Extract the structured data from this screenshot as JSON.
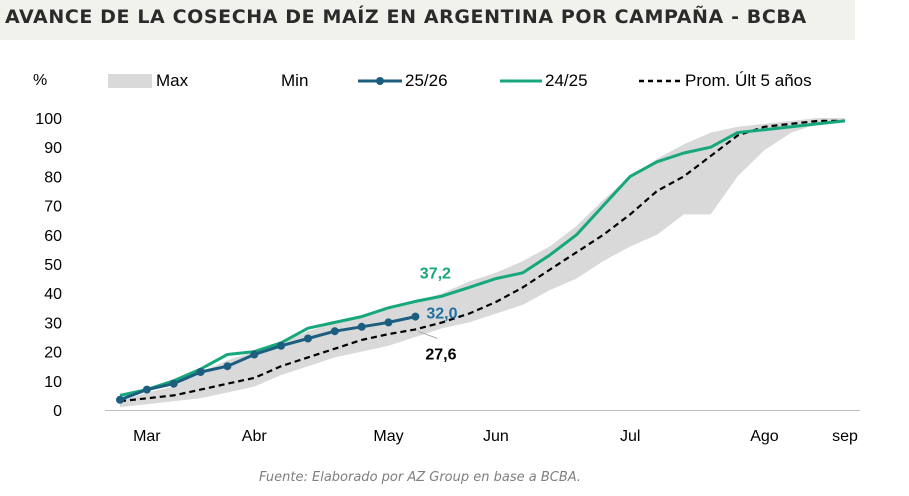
{
  "title": "AVANCE DE LA COSECHA DE MAÍZ EN ARGENTINA POR CAMPAÑA - BCBA",
  "source": "Fuente: Elaborado por AZ Group en base a BCBA.",
  "colors": {
    "band": "#d9d9d9",
    "s2526": "#1d5e80",
    "s2425": "#16a77c",
    "avg": "#000000",
    "label2526": "#1f6fa0",
    "label2425": "#16a77c"
  },
  "chart_data": {
    "type": "line",
    "title": "AVANCE DE LA COSECHA DE MAÍZ EN ARGENTINA POR CAMPAÑA - BCBA",
    "ylabel": "%",
    "xlabel": "",
    "ylim": [
      0,
      100
    ],
    "yticks": [
      0,
      10,
      20,
      30,
      40,
      50,
      60,
      70,
      80,
      90,
      100
    ],
    "xticks": [
      "Mar",
      "Abr",
      "May",
      "Jun",
      "Jul",
      "Ago",
      "sep"
    ],
    "x_unit": "week",
    "x_domain": [
      0,
      27
    ],
    "xtick_positions": [
      1,
      5,
      10,
      14,
      19,
      24,
      27
    ],
    "legend_position": "top",
    "band": {
      "name_max": "Max",
      "name_min": "Min",
      "x": [
        0,
        1,
        2,
        3,
        4,
        5,
        6,
        7,
        8,
        9,
        10,
        11,
        12,
        13,
        14,
        15,
        16,
        17,
        18,
        19,
        20,
        21,
        22,
        23,
        24,
        25,
        26,
        27
      ],
      "max": [
        3,
        6,
        8,
        13,
        17,
        20,
        23,
        27,
        30,
        32,
        35,
        37,
        40,
        44,
        47,
        51,
        56,
        63,
        72,
        80,
        86,
        91,
        95,
        97,
        98,
        99,
        100,
        100
      ],
      "min": [
        1,
        2,
        3,
        4,
        6,
        8,
        12,
        15,
        18,
        20,
        22,
        25,
        28,
        30,
        33,
        36,
        41,
        45,
        51,
        56,
        60,
        67,
        67,
        80,
        89,
        95,
        98,
        99
      ]
    },
    "series": [
      {
        "name": "25/26",
        "x": [
          0,
          1,
          2,
          3,
          4,
          5,
          6,
          7,
          8,
          9,
          10,
          11
        ],
        "y": [
          3.5,
          7,
          9,
          13,
          15,
          19,
          22,
          24.5,
          27,
          28.5,
          30,
          32.0
        ],
        "markers": true,
        "end_label": "32,0"
      },
      {
        "name": "24/25",
        "x": [
          0,
          1,
          2,
          3,
          4,
          5,
          6,
          7,
          8,
          9,
          10,
          11,
          12,
          13,
          14,
          15,
          16,
          17,
          18,
          19,
          20,
          21,
          22,
          23,
          24,
          25,
          26,
          27
        ],
        "y": [
          5,
          7,
          10,
          14,
          19,
          20,
          23,
          28,
          30,
          32,
          35,
          37.2,
          39,
          42,
          45,
          47,
          53,
          60,
          70,
          80,
          85,
          88,
          90,
          95,
          96,
          97,
          98,
          99
        ],
        "markers": false,
        "label": "37,2",
        "label_x": 11
      },
      {
        "name": "Prom. Últ 5 años",
        "x": [
          0,
          1,
          2,
          3,
          4,
          5,
          6,
          7,
          8,
          9,
          10,
          11,
          12,
          13,
          14,
          15,
          16,
          17,
          18,
          19,
          20,
          21,
          22,
          23,
          24,
          25,
          26,
          27
        ],
        "y": [
          3,
          4,
          5,
          7,
          9,
          11,
          15,
          18,
          21,
          24,
          26,
          27.6,
          30,
          33,
          37,
          42,
          48,
          54,
          60,
          67,
          75,
          80,
          87,
          94,
          97,
          98,
          99,
          99
        ],
        "markers": false,
        "dashed": true,
        "label": "27,6",
        "label_x": 11
      }
    ]
  }
}
